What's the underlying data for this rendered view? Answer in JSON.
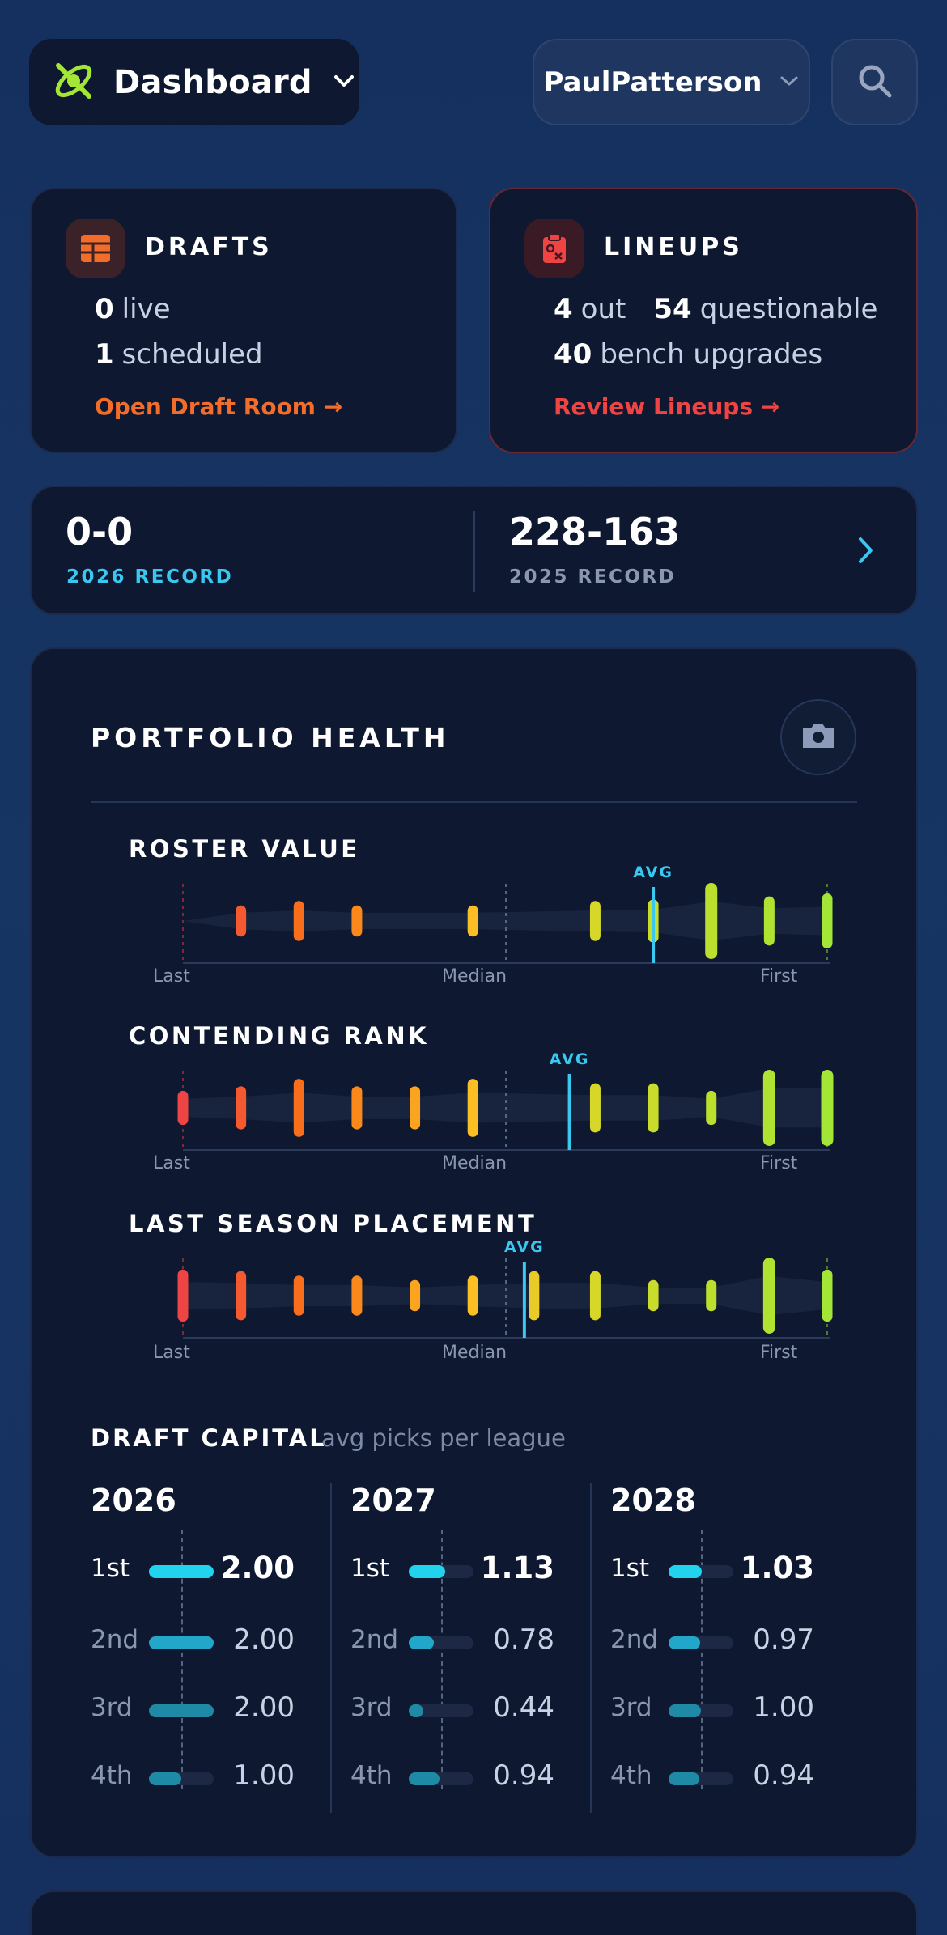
{
  "header": {
    "title": "Dashboard",
    "user": "PaulPatterson"
  },
  "drafts": {
    "title": "DRAFTS",
    "live_count": "0",
    "live_label": "live",
    "scheduled_count": "1",
    "scheduled_label": "scheduled",
    "link": "Open Draft Room →"
  },
  "lineups": {
    "title": "LINEUPS",
    "out_count": "4",
    "out_label": "out",
    "questionable_count": "54",
    "questionable_label": "questionable",
    "bench_count": "40",
    "bench_label": "bench upgrades",
    "link": "Review Lineups →"
  },
  "record": {
    "current_value": "0-0",
    "current_label": "2026 RECORD",
    "previous_value": "228-163",
    "previous_label": "2025 RECORD"
  },
  "portfolio": {
    "title": "PORTFOLIO HEALTH",
    "axis": {
      "left": "Last",
      "middle": "Median",
      "right": "First"
    },
    "avg_label": "AVG",
    "strips": [
      {
        "title": "ROSTER VALUE",
        "avg_position": 0.73,
        "marks": [
          {
            "pos": 0.09,
            "size": 0.25
          },
          {
            "pos": 0.18,
            "size": 0.4
          },
          {
            "pos": 0.27,
            "size": 0.25
          },
          {
            "pos": 0.45,
            "size": 0.25
          },
          {
            "pos": 0.64,
            "size": 0.4
          },
          {
            "pos": 0.73,
            "size": 0.45
          },
          {
            "pos": 0.82,
            "size": 1.0
          },
          {
            "pos": 0.91,
            "size": 0.55
          },
          {
            "pos": 1.0,
            "size": 0.65
          }
        ]
      },
      {
        "title": "CONTENDING RANK",
        "avg_position": 0.6,
        "marks": [
          {
            "pos": 0.0,
            "size": 0.3
          },
          {
            "pos": 0.09,
            "size": 0.45
          },
          {
            "pos": 0.18,
            "size": 0.7
          },
          {
            "pos": 0.27,
            "size": 0.45
          },
          {
            "pos": 0.36,
            "size": 0.45
          },
          {
            "pos": 0.45,
            "size": 0.7
          },
          {
            "pos": 0.64,
            "size": 0.55
          },
          {
            "pos": 0.73,
            "size": 0.55
          },
          {
            "pos": 0.82,
            "size": 0.3
          },
          {
            "pos": 0.91,
            "size": 1.0
          },
          {
            "pos": 1.0,
            "size": 1.0
          }
        ]
      },
      {
        "title": "LAST SEASON PLACEMENT",
        "avg_position": 0.53,
        "marks": [
          {
            "pos": 0.0,
            "size": 0.6
          },
          {
            "pos": 0.09,
            "size": 0.55
          },
          {
            "pos": 0.18,
            "size": 0.4
          },
          {
            "pos": 0.27,
            "size": 0.4
          },
          {
            "pos": 0.36,
            "size": 0.25
          },
          {
            "pos": 0.45,
            "size": 0.4
          },
          {
            "pos": 0.545,
            "size": 0.55
          },
          {
            "pos": 0.64,
            "size": 0.55
          },
          {
            "pos": 0.73,
            "size": 0.25
          },
          {
            "pos": 0.82,
            "size": 0.25
          },
          {
            "pos": 0.91,
            "size": 1.0
          },
          {
            "pos": 1.0,
            "size": 0.6
          }
        ]
      }
    ]
  },
  "draft_capital": {
    "title": "DRAFT CAPITAL",
    "subtitle": "avg picks per league",
    "years": [
      {
        "year": "2026",
        "picks": [
          {
            "round": "1st",
            "value": "2.00",
            "fill": 1.0
          },
          {
            "round": "2nd",
            "value": "2.00",
            "fill": 1.0
          },
          {
            "round": "3rd",
            "value": "2.00",
            "fill": 1.0
          },
          {
            "round": "4th",
            "value": "1.00",
            "fill": 0.5
          }
        ]
      },
      {
        "year": "2027",
        "picks": [
          {
            "round": "1st",
            "value": "1.13",
            "fill": 0.565
          },
          {
            "round": "2nd",
            "value": "0.78",
            "fill": 0.39
          },
          {
            "round": "3rd",
            "value": "0.44",
            "fill": 0.22
          },
          {
            "round": "4th",
            "value": "0.94",
            "fill": 0.47
          }
        ]
      },
      {
        "year": "2028",
        "picks": [
          {
            "round": "1st",
            "value": "1.03",
            "fill": 0.515
          },
          {
            "round": "2nd",
            "value": "0.97",
            "fill": 0.485
          },
          {
            "round": "3rd",
            "value": "1.00",
            "fill": 0.5
          },
          {
            "round": "4th",
            "value": "0.94",
            "fill": 0.47
          }
        ]
      }
    ]
  },
  "colors": {
    "accent_orange": "#f26d2a",
    "accent_red": "#ef4444",
    "accent_cyan": "#38c8f0",
    "lime": "#a3e635"
  }
}
